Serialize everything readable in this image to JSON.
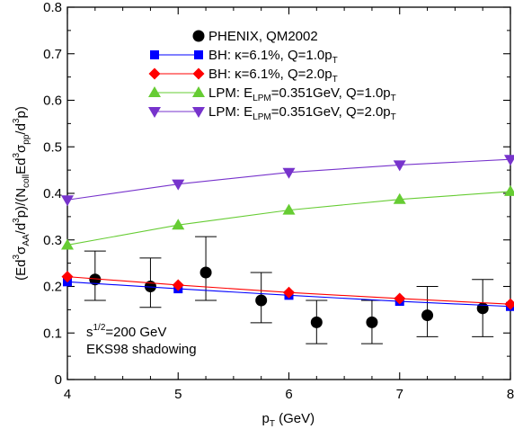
{
  "chart_data": {
    "type": "scatter",
    "xlabel_main": "p",
    "xlabel_sub": "T",
    "xlabel_unit": " (GeV)",
    "ylabel_parts": [
      {
        "t": "(Ed",
        "s": "base"
      },
      {
        "t": "3",
        "s": "sup"
      },
      {
        "t": "σ",
        "s": "base"
      },
      {
        "t": "AA",
        "s": "sub"
      },
      {
        "t": "/d",
        "s": "base"
      },
      {
        "t": "3",
        "s": "sup"
      },
      {
        "t": "p)/(N",
        "s": "base"
      },
      {
        "t": "coll",
        "s": "sub"
      },
      {
        "t": "Ed",
        "s": "base"
      },
      {
        "t": "3",
        "s": "sup"
      },
      {
        "t": "σ",
        "s": "base"
      },
      {
        "t": "pp",
        "s": "sub"
      },
      {
        "t": "/d",
        "s": "base"
      },
      {
        "t": "3",
        "s": "sup"
      },
      {
        "t": "p)",
        "s": "base"
      }
    ],
    "xlim": [
      4,
      8
    ],
    "ylim": [
      0,
      0.8
    ],
    "xticks": [
      4,
      5,
      6,
      7,
      8
    ],
    "xtick_labels": [
      "4",
      "5",
      "6",
      "7",
      "8"
    ],
    "yticks": [
      0,
      0.1,
      0.2,
      0.3,
      0.4,
      0.5,
      0.6,
      0.7,
      0.8
    ],
    "ytick_labels": [
      "0",
      "0.1",
      "0.2",
      "0.3",
      "0.4",
      "0.5",
      "0.6",
      "0.7",
      "0.8"
    ],
    "grid": false,
    "legend_position": "top-center",
    "annotation_lines": [
      [
        {
          "t": "s",
          "s": "base"
        },
        {
          "t": "1/2",
          "s": "sup"
        },
        {
          "t": "=200 GeV",
          "s": "base"
        }
      ],
      [
        {
          "t": "EKS98 shadowing",
          "s": "base"
        }
      ]
    ],
    "series": [
      {
        "name": "PHENIX, QM2002",
        "legend_parts": [
          {
            "t": "PHENIX, QM2002",
            "s": "base"
          }
        ],
        "color": "#000000",
        "marker": "circle",
        "line": false,
        "x": [
          4.25,
          4.75,
          5.25,
          5.75,
          6.25,
          6.75,
          7.25,
          7.75
        ],
        "y": [
          0.215,
          0.2,
          0.23,
          0.17,
          0.123,
          0.123,
          0.138,
          0.153
        ],
        "yerr_low": [
          0.17,
          0.155,
          0.17,
          0.122,
          0.077,
          0.077,
          0.092,
          0.092
        ],
        "yerr_high": [
          0.276,
          0.261,
          0.307,
          0.23,
          0.17,
          0.17,
          0.2,
          0.215
        ]
      },
      {
        "name": "BH: κ=6.1%, Q=1.0pT",
        "legend_parts": [
          {
            "t": "BH: κ=6.1%, Q=1.0p",
            "s": "base"
          },
          {
            "t": "T",
            "s": "sub"
          }
        ],
        "color": "#0000ff",
        "marker": "square",
        "line": true,
        "x": [
          4,
          5,
          6,
          7,
          8
        ],
        "y": [
          0.21,
          0.195,
          0.181,
          0.168,
          0.157
        ]
      },
      {
        "name": "BH: κ=6.1%, Q=2.0pT",
        "legend_parts": [
          {
            "t": "BH: κ=6.1%, Q=2.0p",
            "s": "base"
          },
          {
            "t": "T",
            "s": "sub"
          }
        ],
        "color": "#ff0000",
        "marker": "diamond",
        "line": true,
        "x": [
          4,
          5,
          6,
          7,
          8
        ],
        "y": [
          0.221,
          0.203,
          0.187,
          0.174,
          0.162
        ]
      },
      {
        "name": "LPM: ELPM=0.351GeV, Q=1.0pT",
        "legend_parts": [
          {
            "t": "LPM: E",
            "s": "base"
          },
          {
            "t": "LPM",
            "s": "sub"
          },
          {
            "t": "=0.351GeV, Q=1.0p",
            "s": "base"
          },
          {
            "t": "T",
            "s": "sub"
          }
        ],
        "color": "#66cc33",
        "marker": "triangle-up",
        "line": true,
        "x": [
          4,
          5,
          6,
          7,
          8
        ],
        "y": [
          0.289,
          0.332,
          0.364,
          0.387,
          0.404
        ]
      },
      {
        "name": "LPM: ELPM=0.351GeV, Q=2.0pT",
        "legend_parts": [
          {
            "t": "LPM: E",
            "s": "base"
          },
          {
            "t": "LPM",
            "s": "sub"
          },
          {
            "t": "=0.351GeV, Q=2.0p",
            "s": "base"
          },
          {
            "t": "T",
            "s": "sub"
          }
        ],
        "color": "#7733cc",
        "marker": "triangle-down",
        "line": true,
        "x": [
          4,
          5,
          6,
          7,
          8
        ],
        "y": [
          0.386,
          0.42,
          0.445,
          0.461,
          0.473
        ]
      }
    ]
  }
}
